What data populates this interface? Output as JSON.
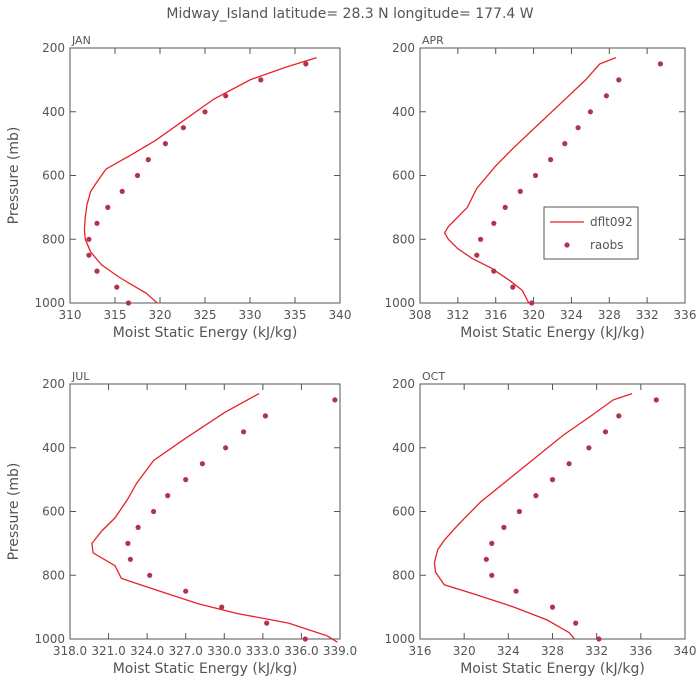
{
  "chart_data": {
    "type": "line",
    "title": "Midway_Island   latitude= 28.3 N longitude= 177.4 W",
    "legend": {
      "position": "right",
      "entries": [
        {
          "label": "dflt092",
          "kind": "line",
          "color": "#e8212a"
        },
        {
          "label": "raobs",
          "kind": "marker",
          "color": "#b3324f"
        }
      ]
    },
    "colors": {
      "model": "#e8212a",
      "obs": "#b3324f",
      "axis": "#555555"
    },
    "panels": [
      {
        "label": "JAN",
        "xlabel": "Moist Static Energy (kJ/kg)",
        "ylabel": "Pressure (mb)",
        "xlim": [
          310,
          340
        ],
        "xticks": [
          310,
          315,
          320,
          325,
          330,
          335,
          340
        ],
        "ylim": [
          200,
          1000
        ],
        "yticks": [
          200,
          400,
          600,
          800,
          1000
        ],
        "series": [
          {
            "name": "dflt092",
            "kind": "line",
            "points": [
              [
                337.4,
                230
              ],
              [
                334,
                260
              ],
              [
                330,
                300
              ],
              [
                326,
                360
              ],
              [
                322.5,
                430
              ],
              [
                319.5,
                490
              ],
              [
                316.5,
                540
              ],
              [
                314,
                580
              ],
              [
                313,
                620
              ],
              [
                312.3,
                650
              ],
              [
                311.9,
                690
              ],
              [
                311.7,
                730
              ],
              [
                311.6,
                770
              ],
              [
                311.7,
                800
              ],
              [
                312.3,
                840
              ],
              [
                313.5,
                880
              ],
              [
                315.5,
                920
              ],
              [
                317.3,
                950
              ],
              [
                318.5,
                970
              ],
              [
                319.3,
                990
              ],
              [
                319.7,
                1000
              ]
            ]
          },
          {
            "name": "raobs",
            "kind": "marker",
            "points": [
              [
                336.2,
                250
              ],
              [
                331.2,
                300
              ],
              [
                327.3,
                350
              ],
              [
                325,
                400
              ],
              [
                322.6,
                450
              ],
              [
                320.6,
                500
              ],
              [
                318.7,
                550
              ],
              [
                317.5,
                600
              ],
              [
                315.8,
                650
              ],
              [
                314.2,
                700
              ],
              [
                313,
                750
              ],
              [
                312.1,
                800
              ],
              [
                312.1,
                850
              ],
              [
                313,
                900
              ],
              [
                315.2,
                950
              ],
              [
                316.5,
                1000
              ]
            ]
          }
        ]
      },
      {
        "label": "APR",
        "xlabel": "Moist Static Energy (kJ/kg)",
        "ylabel": "",
        "xlim": [
          308,
          336
        ],
        "xticks": [
          308,
          312,
          316,
          320,
          324,
          328,
          332,
          336
        ],
        "ylim": [
          200,
          1000
        ],
        "yticks": [
          200,
          400,
          600,
          800,
          1000
        ],
        "series": [
          {
            "name": "dflt092",
            "kind": "line",
            "points": [
              [
                328.7,
                230
              ],
              [
                327,
                250
              ],
              [
                325.5,
                300
              ],
              [
                323,
                370
              ],
              [
                320.5,
                440
              ],
              [
                318,
                510
              ],
              [
                316,
                570
              ],
              [
                314,
                640
              ],
              [
                313,
                700
              ],
              [
                312,
                730
              ],
              [
                311,
                760
              ],
              [
                310.6,
                780
              ],
              [
                311,
                800
              ],
              [
                312,
                830
              ],
              [
                313.5,
                860
              ],
              [
                315.5,
                890
              ],
              [
                317.5,
                930
              ],
              [
                318.8,
                960
              ],
              [
                319.5,
                1000
              ]
            ]
          },
          {
            "name": "raobs",
            "kind": "marker",
            "points": [
              [
                333.4,
                250
              ],
              [
                329,
                300
              ],
              [
                327.7,
                350
              ],
              [
                326,
                400
              ],
              [
                324.7,
                450
              ],
              [
                323.3,
                500
              ],
              [
                321.8,
                550
              ],
              [
                320.2,
                600
              ],
              [
                318.6,
                650
              ],
              [
                317,
                700
              ],
              [
                315.8,
                750
              ],
              [
                314.4,
                800
              ],
              [
                314,
                850
              ],
              [
                315.8,
                900
              ],
              [
                317.8,
                950
              ],
              [
                319.8,
                1000
              ]
            ]
          }
        ]
      },
      {
        "label": "JUL",
        "xlabel": "Moist Static Energy (kJ/kg)",
        "ylabel": "Pressure (mb)",
        "xlim": [
          318.0,
          339.0
        ],
        "xticks": [
          318.0,
          321.0,
          324.0,
          327.0,
          330.0,
          333.0,
          336.0,
          339.0
        ],
        "ylim": [
          200,
          1000
        ],
        "yticks": [
          200,
          400,
          600,
          800,
          1000
        ],
        "series": [
          {
            "name": "dflt092",
            "kind": "line",
            "points": [
              [
                332.7,
                230
              ],
              [
                330,
                290
              ],
              [
                327,
                370
              ],
              [
                324.5,
                440
              ],
              [
                323.2,
                510
              ],
              [
                322.5,
                560
              ],
              [
                321.5,
                620
              ],
              [
                320.5,
                660
              ],
              [
                319.7,
                700
              ],
              [
                319.8,
                730
              ],
              [
                321.5,
                770
              ],
              [
                322,
                810
              ],
              [
                325,
                850
              ],
              [
                328,
                890
              ],
              [
                331,
                920
              ],
              [
                335,
                950
              ],
              [
                338,
                990
              ],
              [
                338.8,
                1010
              ]
            ]
          },
          {
            "name": "raobs",
            "kind": "marker",
            "points": [
              [
                338.6,
                250
              ],
              [
                333.2,
                300
              ],
              [
                331.5,
                350
              ],
              [
                330.1,
                400
              ],
              [
                328.3,
                450
              ],
              [
                327,
                500
              ],
              [
                325.6,
                550
              ],
              [
                324.5,
                600
              ],
              [
                323.3,
                650
              ],
              [
                322.5,
                700
              ],
              [
                322.7,
                750
              ],
              [
                324.2,
                800
              ],
              [
                327,
                850
              ],
              [
                329.8,
                900
              ],
              [
                333.3,
                950
              ],
              [
                336.3,
                1000
              ]
            ]
          }
        ]
      },
      {
        "label": "OCT",
        "xlabel": "Moist Static Energy (kJ/kg)",
        "ylabel": "",
        "xlim": [
          316,
          340
        ],
        "xticks": [
          316,
          320,
          324,
          328,
          332,
          336,
          340
        ],
        "ylim": [
          200,
          1000
        ],
        "yticks": [
          200,
          400,
          600,
          800,
          1000
        ],
        "series": [
          {
            "name": "dflt092",
            "kind": "line",
            "points": [
              [
                335.2,
                230
              ],
              [
                333.5,
                250
              ],
              [
                331.5,
                300
              ],
              [
                329,
                360
              ],
              [
                326.5,
                430
              ],
              [
                324,
                500
              ],
              [
                321.5,
                570
              ],
              [
                319.5,
                640
              ],
              [
                318.2,
                690
              ],
              [
                317.6,
                720
              ],
              [
                317.3,
                760
              ],
              [
                317.4,
                790
              ],
              [
                318.2,
                830
              ],
              [
                321,
                860
              ],
              [
                324.5,
                900
              ],
              [
                327.5,
                940
              ],
              [
                329.5,
                980
              ],
              [
                330,
                1000
              ]
            ]
          },
          {
            "name": "raobs",
            "kind": "marker",
            "points": [
              [
                337.4,
                250
              ],
              [
                334,
                300
              ],
              [
                332.8,
                350
              ],
              [
                331.3,
                400
              ],
              [
                329.5,
                450
              ],
              [
                328,
                500
              ],
              [
                326.5,
                550
              ],
              [
                325,
                600
              ],
              [
                323.6,
                650
              ],
              [
                322.5,
                700
              ],
              [
                322,
                750
              ],
              [
                322.5,
                800
              ],
              [
                324.7,
                850
              ],
              [
                328,
                900
              ],
              [
                330.1,
                950
              ],
              [
                332.2,
                1000
              ]
            ]
          }
        ]
      }
    ]
  }
}
